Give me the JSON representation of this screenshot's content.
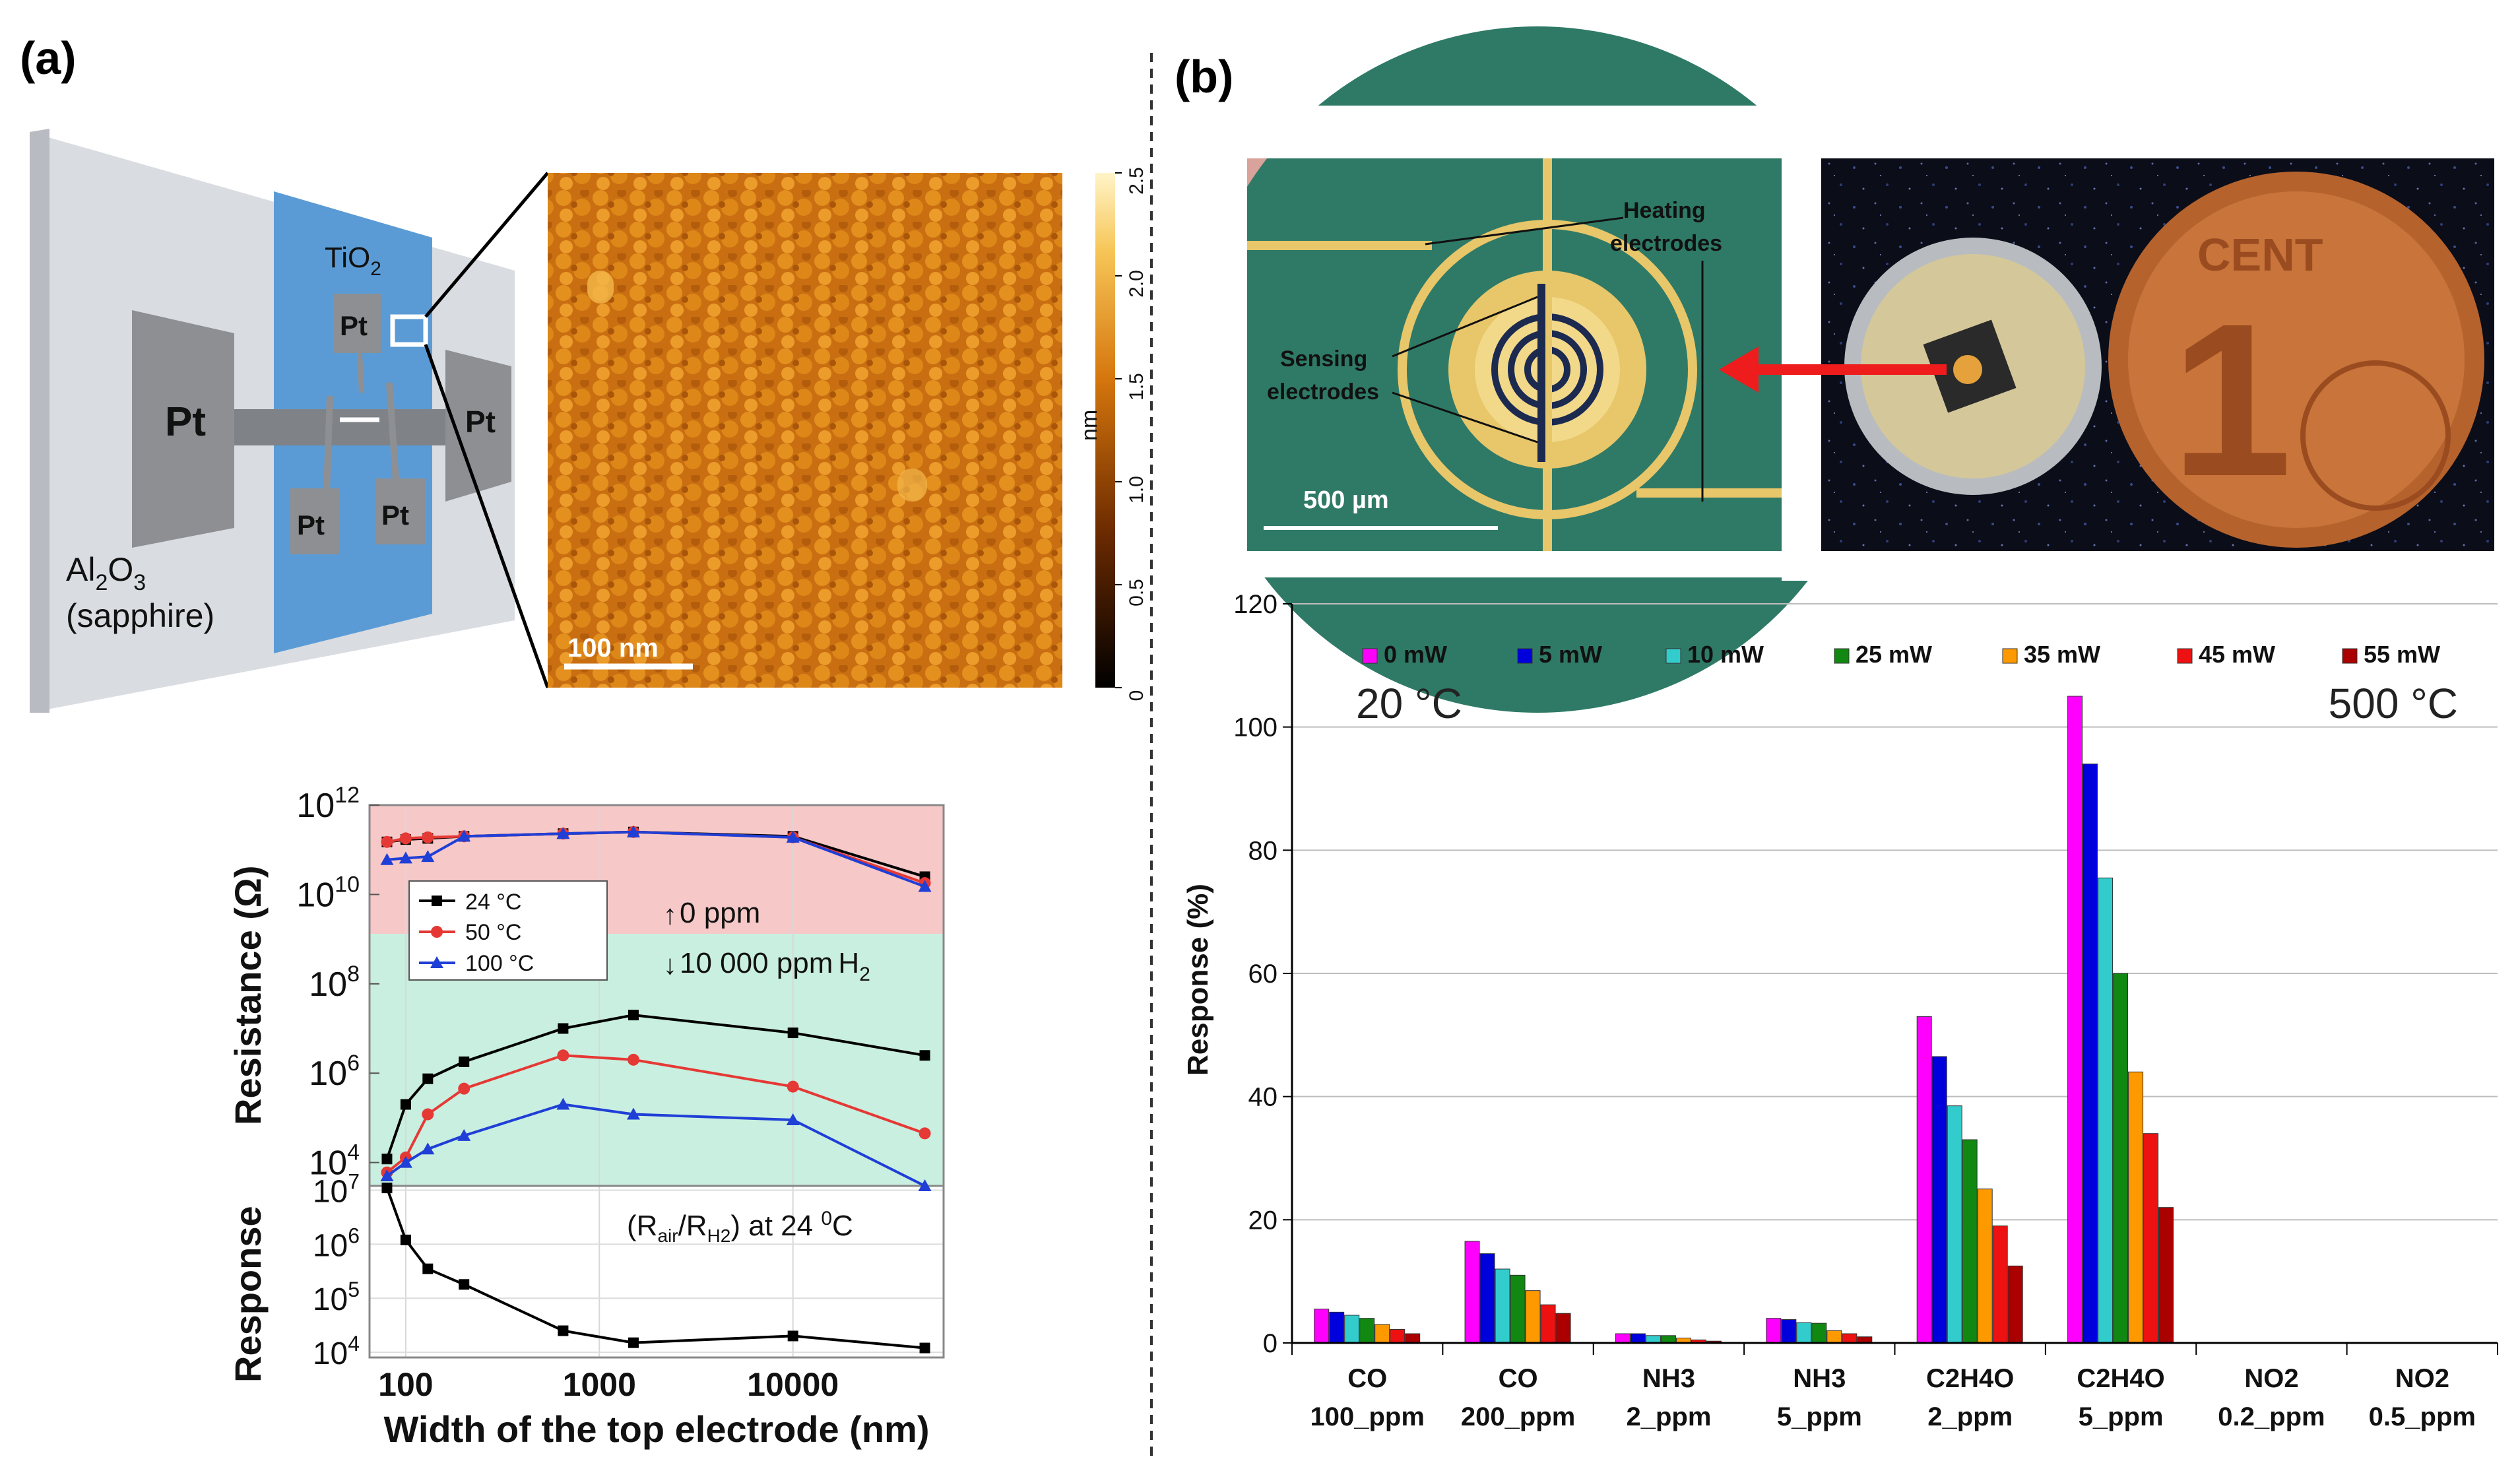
{
  "panel_labels": {
    "a": "(a)",
    "b": "(b)"
  },
  "device": {
    "tio2": "TiO",
    "tio2_sub": "2",
    "pt": "Pt",
    "al2o3": "Al",
    "al2o3_sub1": "2",
    "al2o3_mid": "O",
    "al2o3_sub2": "3",
    "sapphire": "(sapphire)"
  },
  "afm": {
    "scale_bar": "100 nm",
    "colorbar_unit": "nm",
    "colorbar_ticks": [
      "0",
      "0.5",
      "1.0",
      "1.5",
      "2.0",
      "2.5"
    ]
  },
  "micrograph": {
    "heating_label_1": "Heating",
    "heating_label_2": "electrodes",
    "sensing_label_1": "Sensing",
    "sensing_label_2": "electrodes",
    "scale_bar": "500 µm"
  },
  "coin": {
    "text": "CENT",
    "digit": "1"
  },
  "colors": {
    "bg_zero_ppm": "#f7c8c8",
    "bg_h2": "#c9efe0",
    "series_24": "#000000",
    "series_50": "#e53935",
    "series_100": "#1f3fd6",
    "arrow": "#ee1c1c",
    "pcb_green": "#2f7a66",
    "gold": "#e8c66a"
  },
  "chart_data": [
    {
      "type": "line",
      "panel": "a",
      "title": "",
      "xlabel": "Width of the top electrode (nm)",
      "ylabel": "Resistance (Ω)",
      "xscale": "log",
      "yscale": "log",
      "xlim": [
        65,
        60000
      ],
      "ylim": [
        3000,
        1000000000000.0
      ],
      "xticks": [
        {
          "v": 100,
          "t": "100"
        },
        {
          "v": 1000,
          "t": "1000"
        },
        {
          "v": 10000,
          "t": "10000"
        }
      ],
      "yticks": [
        {
          "v": 1000000000000.0,
          "base": "10",
          "exp": "12"
        },
        {
          "v": 10000000000.0,
          "base": "10",
          "exp": "10"
        },
        {
          "v": 100000000.0,
          "base": "10",
          "exp": "8"
        },
        {
          "v": 1000000.0,
          "base": "10",
          "exp": "6"
        },
        {
          "v": 10000.0,
          "base": "10",
          "exp": "4"
        }
      ],
      "legend": [
        "24 °C",
        "50 °C",
        "100 °C"
      ],
      "annotation_up": "0 ppm",
      "annotation_down": "10 000 ppm",
      "annotation_gas": "H",
      "annotation_gas_sub": "2",
      "x": [
        80,
        100,
        130,
        200,
        650,
        1500,
        10000,
        48000
      ],
      "series": [
        {
          "name": "24 °C",
          "air": [
            150000000000.0,
            170000000000.0,
            180000000000.0,
            200000000000.0,
            230000000000.0,
            250000000000.0,
            200000000000.0,
            25000000000.0
          ],
          "h2": [
            12000.0,
            200000.0,
            750000.0,
            1800000.0,
            10000000.0,
            20000000.0,
            8000000.0,
            2500000.0
          ]
        },
        {
          "name": "50 °C",
          "air": [
            150000000000.0,
            180000000000.0,
            190000000000.0,
            200000000000.0,
            230000000000.0,
            250000000000.0,
            190000000000.0,
            18000000000.0
          ],
          "h2": [
            6000.0,
            13000.0,
            120000.0,
            450000.0,
            2500000.0,
            2000000.0,
            500000.0,
            45000.0
          ]
        },
        {
          "name": "100 °C",
          "air": [
            60000000000.0,
            65000000000.0,
            70000000000.0,
            200000000000.0,
            230000000000.0,
            250000000000.0,
            190000000000.0,
            15000000000.0
          ],
          "h2": [
            5000.0,
            10000.0,
            20000.0,
            40000.0,
            200000.0,
            120000.0,
            90000.0,
            3000.0
          ]
        }
      ]
    },
    {
      "type": "line",
      "panel": "a",
      "title": "",
      "xlabel": "Width of the top electrode (nm)",
      "ylabel": "Response",
      "xscale": "log",
      "yscale": "log",
      "xlim": [
        65,
        60000
      ],
      "ylim": [
        8000,
        12000000.0
      ],
      "yticks": [
        {
          "v": 10000000.0,
          "base": "10",
          "exp": "7"
        },
        {
          "v": 1000000.0,
          "base": "10",
          "exp": "6"
        },
        {
          "v": 100000.0,
          "base": "10",
          "exp": "5"
        },
        {
          "v": 10000.0,
          "base": "10",
          "exp": "4"
        }
      ],
      "annotation_pre": "(R",
      "annotation_sub1": "air",
      "annotation_slash": "/R",
      "annotation_sub2": "H2",
      "annotation_post": ") at 24 ",
      "annotation_deg": "0",
      "annotation_unit": "C",
      "x": [
        80,
        100,
        130,
        200,
        650,
        1500,
        10000,
        48000
      ],
      "values": [
        11000000.0,
        1200000.0,
        350000.0,
        180000.0,
        25000.0,
        15000.0,
        20000.0,
        12000.0
      ]
    },
    {
      "type": "bar",
      "panel": "b",
      "title": "",
      "xlabel": "",
      "ylabel": "Response (%)",
      "ylim": [
        0,
        120
      ],
      "yticks": [
        0,
        20,
        40,
        60,
        80,
        100,
        120
      ],
      "annotation_left": "20 °C",
      "annotation_right": "500 °C",
      "categories": [
        [
          "CO",
          "100_ppm"
        ],
        [
          "CO",
          "200_ppm"
        ],
        [
          "NH3",
          "2_ppm"
        ],
        [
          "NH3",
          "5_ppm"
        ],
        [
          "C2H4O",
          "2_ppm"
        ],
        [
          "C2H4O",
          "5_ppm"
        ],
        [
          "NO2",
          "0.2_ppm"
        ],
        [
          "NO2",
          "0.5_ppm"
        ]
      ],
      "series": [
        {
          "name": "0 mW",
          "color": "#ff00ff",
          "values": [
            5.5,
            16.5,
            1.5,
            4.0,
            53,
            105,
            0,
            0
          ]
        },
        {
          "name": "5 mW",
          "color": "#0000dd",
          "values": [
            5.0,
            14.5,
            1.5,
            3.8,
            46.5,
            94,
            0,
            0
          ]
        },
        {
          "name": "10 mW",
          "color": "#33cccc",
          "values": [
            4.5,
            12,
            1.2,
            3.3,
            38.5,
            75.5,
            0,
            0
          ]
        },
        {
          "name": "25 mW",
          "color": "#118811",
          "values": [
            4.0,
            11,
            1.2,
            3.2,
            33,
            60,
            0,
            0
          ]
        },
        {
          "name": "35 mW",
          "color": "#ff9900",
          "values": [
            3.0,
            8.5,
            0.8,
            2.0,
            25,
            44,
            0,
            0
          ]
        },
        {
          "name": "45 mW",
          "color": "#ee1111",
          "values": [
            2.2,
            6.2,
            0.5,
            1.5,
            19,
            34,
            0,
            0
          ]
        },
        {
          "name": "55 mW",
          "color": "#aa0000",
          "values": [
            1.5,
            4.8,
            0.3,
            1.0,
            12.5,
            22,
            0,
            0
          ]
        }
      ]
    }
  ]
}
